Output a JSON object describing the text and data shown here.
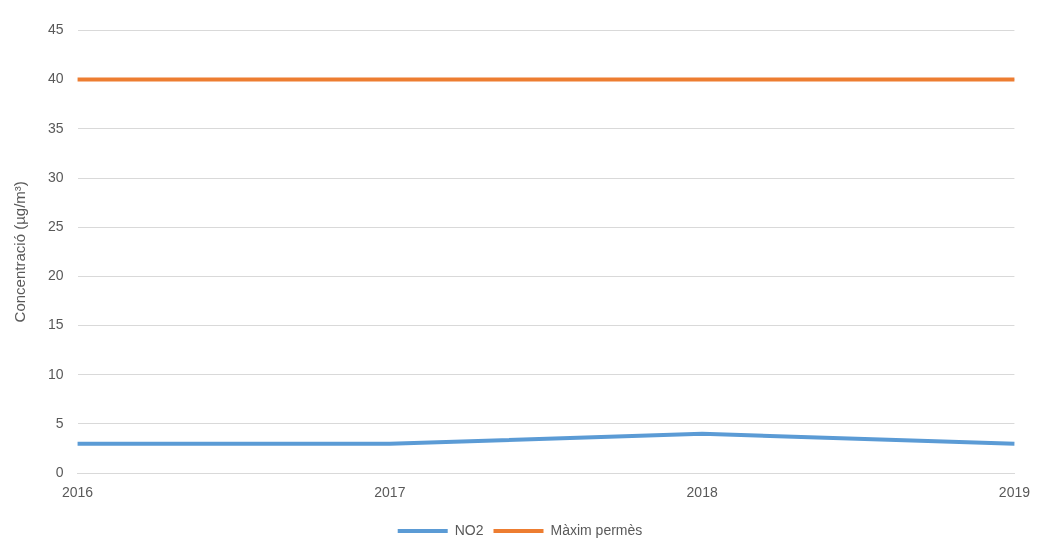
{
  "chart_data": {
    "type": "line",
    "ylabel": "Concentració (µg/m³)",
    "categories": [
      "2016",
      "2017",
      "2018",
      "2019"
    ],
    "series": [
      {
        "name": "NO2",
        "color": "#5b9bd5",
        "values": [
          3,
          3,
          4,
          3
        ]
      },
      {
        "name": "Màxim permès",
        "color": "#ed7d31",
        "values": [
          40,
          40,
          40,
          40
        ]
      }
    ],
    "ylim": [
      0,
      45
    ],
    "yticks": [
      0,
      5,
      10,
      15,
      20,
      25,
      30,
      35,
      40,
      45
    ],
    "grid": "y",
    "legend": "bottom",
    "marker": "none"
  }
}
